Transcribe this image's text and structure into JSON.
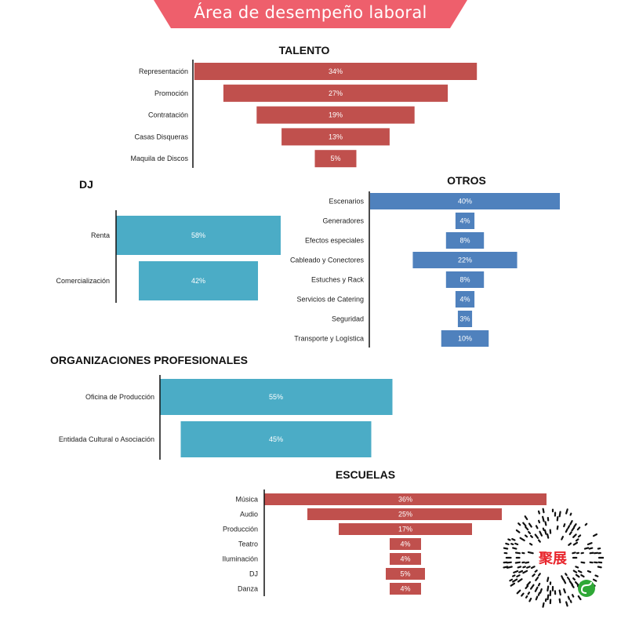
{
  "banner": {
    "title": "Área de desempeño laboral",
    "color": "#ee5f6c"
  },
  "colors": {
    "red": "#c0504d",
    "blue": "#4f81bd",
    "teal": "#4bacc6"
  },
  "chart_data": [
    {
      "type": "bar",
      "title": "TALENTO",
      "color": "#c0504d",
      "categories": [
        "Representación",
        "Promoción",
        "Contratación",
        "Casas Disqueras",
        "Maquila de Discos"
      ],
      "values": [
        34,
        27,
        19,
        13,
        5
      ],
      "value_labels": [
        "34%",
        "27%",
        "19%",
        "13%",
        "5%"
      ]
    },
    {
      "type": "bar",
      "title": "DJ",
      "color": "#4bacc6",
      "categories": [
        "Renta",
        "Comercialización"
      ],
      "values": [
        58,
        42
      ],
      "value_labels": [
        "58%",
        "42%"
      ]
    },
    {
      "type": "bar",
      "title": "OTROS",
      "color": "#4f81bd",
      "categories": [
        "Escenarios",
        "Generadores",
        "Efectos especiales",
        "Cableado y Conectores",
        "Estuches y Rack",
        "Servicios de Catering",
        "Seguridad",
        "Transporte y Logística"
      ],
      "values": [
        40,
        4,
        8,
        22,
        8,
        4,
        3,
        10
      ],
      "value_labels": [
        "40%",
        "4%",
        "8%",
        "22%",
        "8%",
        "4%",
        "3%",
        "10%"
      ]
    },
    {
      "type": "bar",
      "title": "ORGANIZACIONES PROFESIONALES",
      "color": "#4bacc6",
      "categories": [
        "Oficina de Producción",
        "Entidada Cultural o Asociación"
      ],
      "values": [
        55,
        45
      ],
      "value_labels": [
        "55%",
        "45%"
      ]
    },
    {
      "type": "bar",
      "title": "ESCUELAS",
      "color": "#c0504d",
      "categories": [
        "Música",
        "Audio",
        "Producción",
        "Teatro",
        "Iluminación",
        "DJ",
        "Danza"
      ],
      "values": [
        36,
        25,
        17,
        4,
        4,
        5,
        4
      ],
      "value_labels": [
        "36%",
        "25%",
        "17%",
        "4%",
        "4%",
        "5%",
        "4%"
      ]
    }
  ],
  "qr": {
    "logo_text": "聚展",
    "colors": {
      "logo": "#e8262d",
      "badge": "#2fa836"
    }
  }
}
